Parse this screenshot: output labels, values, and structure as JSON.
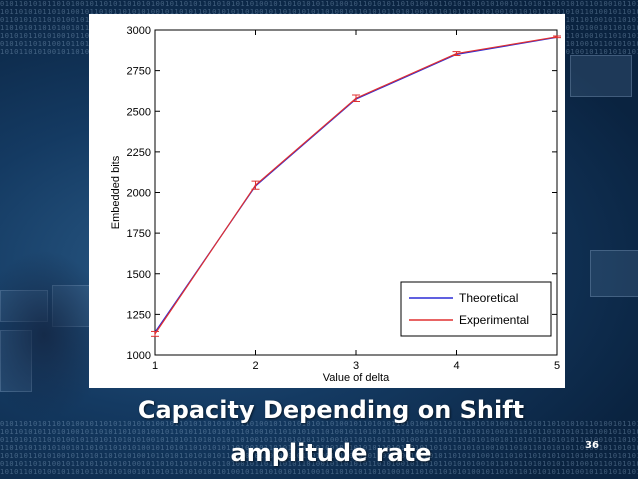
{
  "slide": {
    "title_line1": "Capacity Depending on Shift",
    "title_line2": "amplitude rate",
    "page_number": "36",
    "colors": {
      "background": "#0d2a4a",
      "title": "#ffffff"
    }
  },
  "chart_data": {
    "type": "line",
    "xlabel": "Value of delta",
    "ylabel": "Embedded bits",
    "x": [
      1,
      2,
      3,
      4,
      5
    ],
    "xlim": [
      1,
      5
    ],
    "ylim": [
      1000,
      3000
    ],
    "xticks": [
      "1",
      "2",
      "3",
      "4",
      "5"
    ],
    "yticks": [
      "1000",
      "1250",
      "1500",
      "1750",
      "2000",
      "2250",
      "2500",
      "2750",
      "3000"
    ],
    "grid": false,
    "legend_position": "bottom-right",
    "series": [
      {
        "name": "Theoretical",
        "color": "#2b2bd6",
        "values": [
          1140,
          2040,
          2575,
          2850,
          2955
        ]
      },
      {
        "name": "Experimental",
        "color": "#e03030",
        "values": [
          1130,
          2045,
          2580,
          2855,
          2958
        ],
        "error": [
          15,
          25,
          20,
          12,
          5
        ]
      }
    ]
  }
}
